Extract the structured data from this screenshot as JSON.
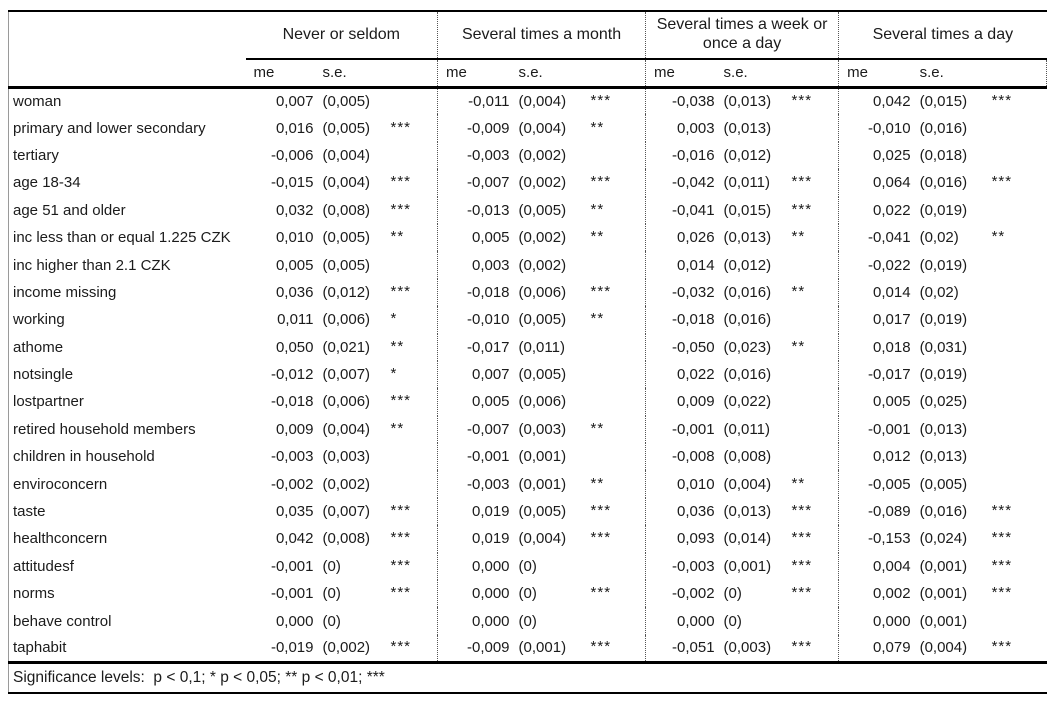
{
  "colors": {
    "background": "#ffffff",
    "text": "#1b1b1b",
    "solid_rule": "#000000",
    "dotted_separator": "#555555"
  },
  "column_groups": [
    {
      "label": "Never or seldom"
    },
    {
      "label": "Several times a month"
    },
    {
      "label": "Several times a week or once a day"
    },
    {
      "label": "Several times a day"
    }
  ],
  "subheaders": {
    "me": "me",
    "se": "s.e."
  },
  "rows": [
    {
      "label": "woman",
      "cells": [
        {
          "me": "0,007",
          "se": "(0,005)",
          "sig": ""
        },
        {
          "me": "-0,011",
          "se": "(0,004)",
          "sig": "***"
        },
        {
          "me": "-0,038",
          "se": "(0,013)",
          "sig": "***"
        },
        {
          "me": "0,042",
          "se": "(0,015)",
          "sig": "***"
        }
      ]
    },
    {
      "label": "primary and lower secondary",
      "cells": [
        {
          "me": "0,016",
          "se": "(0,005)",
          "sig": "***"
        },
        {
          "me": "-0,009",
          "se": "(0,004)",
          "sig": "**"
        },
        {
          "me": "0,003",
          "se": "(0,013)",
          "sig": ""
        },
        {
          "me": "-0,010",
          "se": "(0,016)",
          "sig": ""
        }
      ]
    },
    {
      "label": "tertiary",
      "cells": [
        {
          "me": "-0,006",
          "se": "(0,004)",
          "sig": ""
        },
        {
          "me": "-0,003",
          "se": "(0,002)",
          "sig": ""
        },
        {
          "me": "-0,016",
          "se": "(0,012)",
          "sig": ""
        },
        {
          "me": "0,025",
          "se": "(0,018)",
          "sig": ""
        }
      ]
    },
    {
      "label": "age 18-34",
      "cells": [
        {
          "me": "-0,015",
          "se": "(0,004)",
          "sig": "***"
        },
        {
          "me": "-0,007",
          "se": "(0,002)",
          "sig": "***"
        },
        {
          "me": "-0,042",
          "se": "(0,011)",
          "sig": "***"
        },
        {
          "me": "0,064",
          "se": "(0,016)",
          "sig": "***"
        }
      ]
    },
    {
      "label": "age 51 and older",
      "cells": [
        {
          "me": "0,032",
          "se": "(0,008)",
          "sig": "***"
        },
        {
          "me": "-0,013",
          "se": "(0,005)",
          "sig": "**"
        },
        {
          "me": "-0,041",
          "se": "(0,015)",
          "sig": "***"
        },
        {
          "me": "0,022",
          "se": "(0,019)",
          "sig": ""
        }
      ]
    },
    {
      "label": "inc less than or equal 1.225 CZK",
      "cells": [
        {
          "me": "0,010",
          "se": "(0,005)",
          "sig": "**"
        },
        {
          "me": "0,005",
          "se": "(0,002)",
          "sig": "**"
        },
        {
          "me": "0,026",
          "se": "(0,013)",
          "sig": "**"
        },
        {
          "me": "-0,041",
          "se": "(0,02)",
          "sig": "**"
        }
      ]
    },
    {
      "label": "inc higher than 2.1 CZK",
      "cells": [
        {
          "me": "0,005",
          "se": "(0,005)",
          "sig": ""
        },
        {
          "me": "0,003",
          "se": "(0,002)",
          "sig": ""
        },
        {
          "me": "0,014",
          "se": "(0,012)",
          "sig": ""
        },
        {
          "me": "-0,022",
          "se": "(0,019)",
          "sig": ""
        }
      ]
    },
    {
      "label": "income missing",
      "cells": [
        {
          "me": "0,036",
          "se": "(0,012)",
          "sig": "***"
        },
        {
          "me": "-0,018",
          "se": "(0,006)",
          "sig": "***"
        },
        {
          "me": "-0,032",
          "se": "(0,016)",
          "sig": "**"
        },
        {
          "me": "0,014",
          "se": "(0,02)",
          "sig": ""
        }
      ]
    },
    {
      "label": "working",
      "cells": [
        {
          "me": "0,011",
          "se": "(0,006)",
          "sig": "*"
        },
        {
          "me": "-0,010",
          "se": "(0,005)",
          "sig": "**"
        },
        {
          "me": "-0,018",
          "se": "(0,016)",
          "sig": ""
        },
        {
          "me": "0,017",
          "se": "(0,019)",
          "sig": ""
        }
      ]
    },
    {
      "label": "athome",
      "cells": [
        {
          "me": "0,050",
          "se": "(0,021)",
          "sig": "**"
        },
        {
          "me": "-0,017",
          "se": "(0,011)",
          "sig": ""
        },
        {
          "me": "-0,050",
          "se": "(0,023)",
          "sig": "**"
        },
        {
          "me": "0,018",
          "se": "(0,031)",
          "sig": ""
        }
      ]
    },
    {
      "label": "notsingle",
      "cells": [
        {
          "me": "-0,012",
          "se": "(0,007)",
          "sig": "*"
        },
        {
          "me": "0,007",
          "se": "(0,005)",
          "sig": ""
        },
        {
          "me": "0,022",
          "se": "(0,016)",
          "sig": ""
        },
        {
          "me": "-0,017",
          "se": "(0,019)",
          "sig": ""
        }
      ]
    },
    {
      "label": "lostpartner",
      "cells": [
        {
          "me": "-0,018",
          "se": "(0,006)",
          "sig": "***"
        },
        {
          "me": "0,005",
          "se": "(0,006)",
          "sig": ""
        },
        {
          "me": "0,009",
          "se": "(0,022)",
          "sig": ""
        },
        {
          "me": "0,005",
          "se": "(0,025)",
          "sig": ""
        }
      ]
    },
    {
      "label": "retired household members",
      "cells": [
        {
          "me": "0,009",
          "se": "(0,004)",
          "sig": "**"
        },
        {
          "me": "-0,007",
          "se": "(0,003)",
          "sig": "**"
        },
        {
          "me": "-0,001",
          "se": "(0,011)",
          "sig": ""
        },
        {
          "me": "-0,001",
          "se": "(0,013)",
          "sig": ""
        }
      ]
    },
    {
      "label": "children in household",
      "cells": [
        {
          "me": "-0,003",
          "se": "(0,003)",
          "sig": ""
        },
        {
          "me": "-0,001",
          "se": "(0,001)",
          "sig": ""
        },
        {
          "me": "-0,008",
          "se": "(0,008)",
          "sig": ""
        },
        {
          "me": "0,012",
          "se": "(0,013)",
          "sig": ""
        }
      ]
    },
    {
      "label": "enviroconcern",
      "cells": [
        {
          "me": "-0,002",
          "se": "(0,002)",
          "sig": ""
        },
        {
          "me": "-0,003",
          "se": "(0,001)",
          "sig": "**"
        },
        {
          "me": "0,010",
          "se": "(0,004)",
          "sig": "**"
        },
        {
          "me": "-0,005",
          "se": "(0,005)",
          "sig": ""
        }
      ]
    },
    {
      "label": "taste",
      "cells": [
        {
          "me": "0,035",
          "se": "(0,007)",
          "sig": "***"
        },
        {
          "me": "0,019",
          "se": "(0,005)",
          "sig": "***"
        },
        {
          "me": "0,036",
          "se": "(0,013)",
          "sig": "***"
        },
        {
          "me": "-0,089",
          "se": "(0,016)",
          "sig": "***"
        }
      ]
    },
    {
      "label": "healthconcern",
      "cells": [
        {
          "me": "0,042",
          "se": "(0,008)",
          "sig": "***"
        },
        {
          "me": "0,019",
          "se": "(0,004)",
          "sig": "***"
        },
        {
          "me": "0,093",
          "se": "(0,014)",
          "sig": "***"
        },
        {
          "me": "-0,153",
          "se": "(0,024)",
          "sig": "***"
        }
      ]
    },
    {
      "label": "attitudesf",
      "cells": [
        {
          "me": "-0,001",
          "se": "(0)",
          "sig": "***"
        },
        {
          "me": "0,000",
          "se": "(0)",
          "sig": ""
        },
        {
          "me": "-0,003",
          "se": "(0,001)",
          "sig": "***"
        },
        {
          "me": "0,004",
          "se": "(0,001)",
          "sig": "***"
        }
      ]
    },
    {
      "label": "norms",
      "cells": [
        {
          "me": "-0,001",
          "se": "(0)",
          "sig": "***"
        },
        {
          "me": "0,000",
          "se": "(0)",
          "sig": "***"
        },
        {
          "me": "-0,002",
          "se": "(0)",
          "sig": "***"
        },
        {
          "me": "0,002",
          "se": "(0,001)",
          "sig": "***"
        }
      ]
    },
    {
      "label": "behave control",
      "cells": [
        {
          "me": "0,000",
          "se": "(0)",
          "sig": ""
        },
        {
          "me": "0,000",
          "se": "(0)",
          "sig": ""
        },
        {
          "me": "0,000",
          "se": "(0)",
          "sig": ""
        },
        {
          "me": "0,000",
          "se": "(0,001)",
          "sig": ""
        }
      ]
    },
    {
      "label": "taphabit",
      "cells": [
        {
          "me": "-0,019",
          "se": "(0,002)",
          "sig": "***"
        },
        {
          "me": "-0,009",
          "se": "(0,001)",
          "sig": "***"
        },
        {
          "me": "-0,051",
          "se": "(0,003)",
          "sig": "***"
        },
        {
          "me": "0,079",
          "se": "(0,004)",
          "sig": "***"
        }
      ]
    }
  ],
  "footer": {
    "note": "Significance levels:  p < 0,1; * p < 0,05; ** p < 0,01; ***"
  }
}
